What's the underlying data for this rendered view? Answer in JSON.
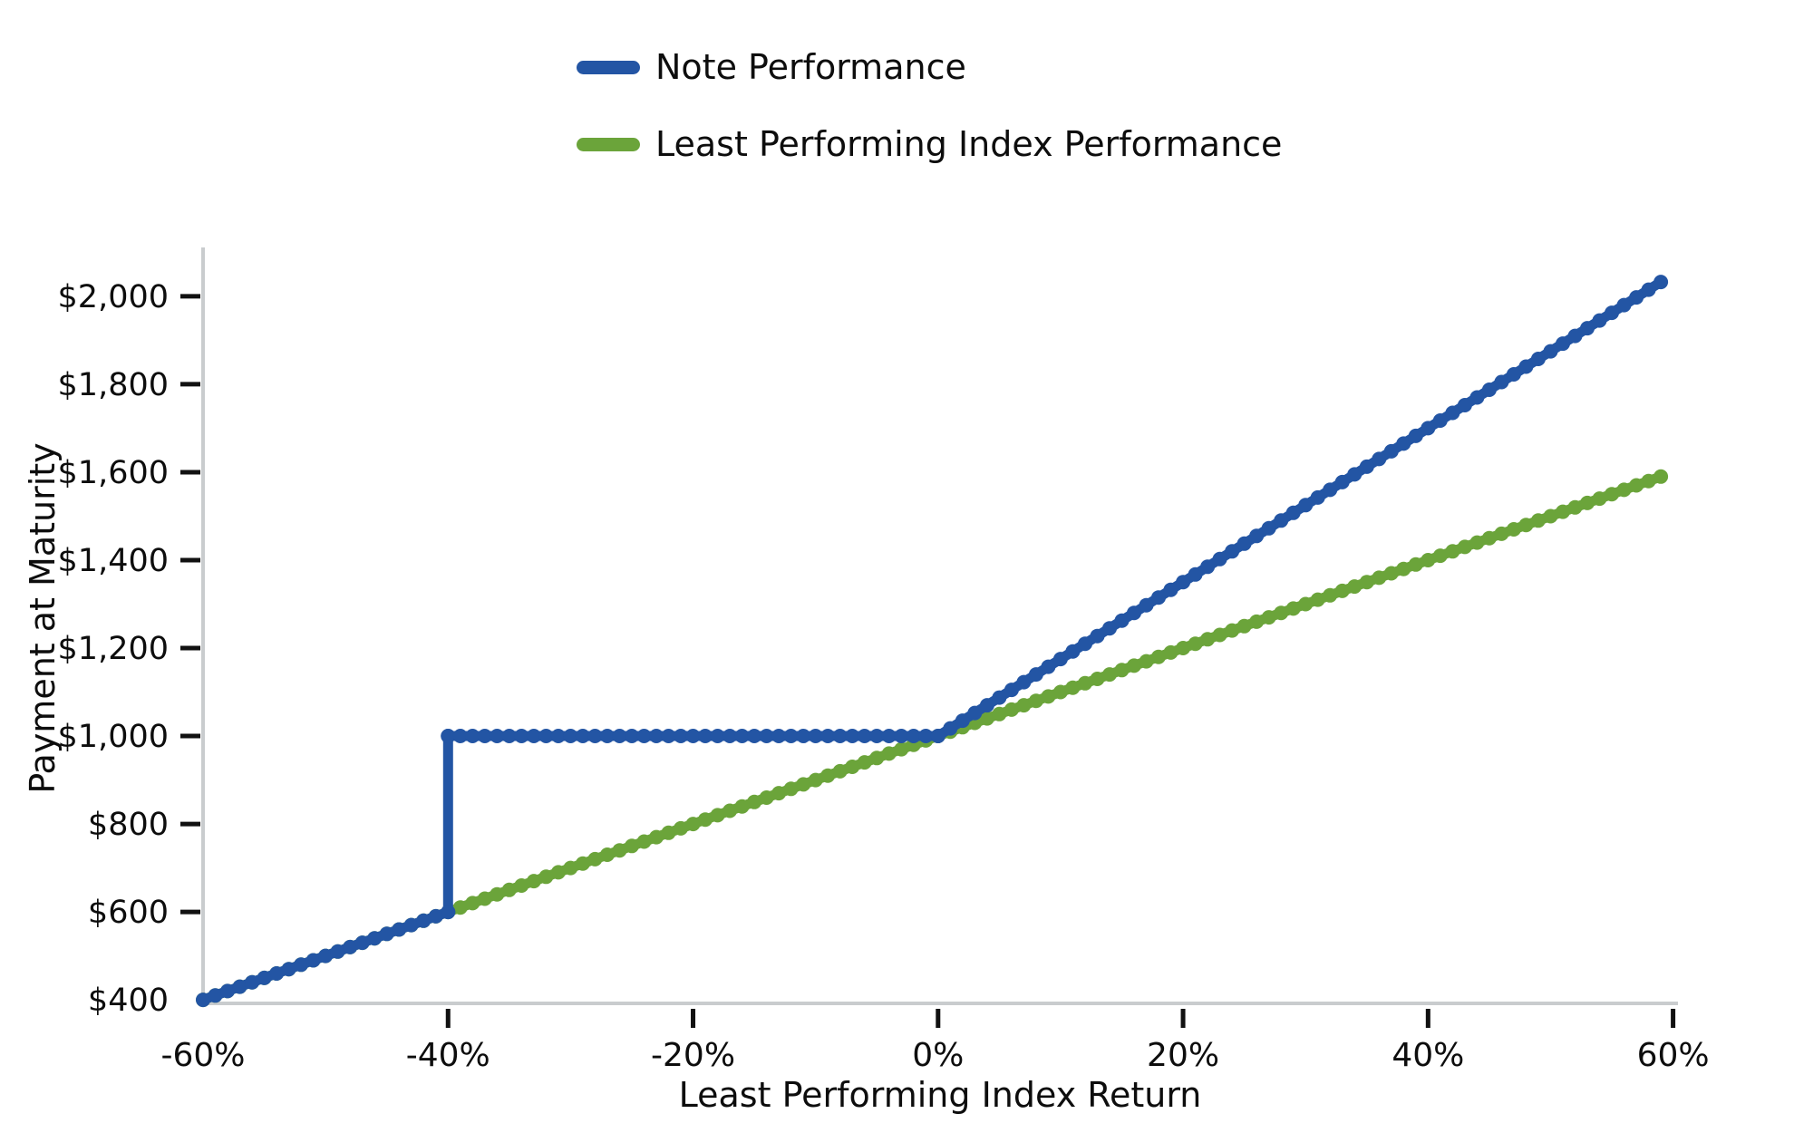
{
  "chart_data": {
    "type": "line",
    "title": "",
    "xlabel": "Least Performing Index Return",
    "ylabel": "Payment at Maturity",
    "xlim": [
      -60,
      60.4
    ],
    "ylim": [
      392,
      2107
    ],
    "grid": false,
    "legend_position": "top-center, outside plot, no frame",
    "marker_step_pct": 1,
    "x_unit": "percent",
    "y_unit": "USD",
    "series": [
      {
        "name": "Note Performance",
        "color": "#2355A4",
        "breakpoints": [
          [
            -60,
            400
          ],
          [
            -40,
            600
          ],
          [
            -40,
            1000
          ],
          [
            0,
            1000
          ],
          [
            59,
            2032.5
          ]
        ],
        "payoff_structure": {
          "barrier_pct": -40,
          "par_payment": 1000,
          "upside_leverage": 1.75
        }
      },
      {
        "name": "Least Performing Index Performance",
        "color": "#6BA43A",
        "breakpoints": [
          [
            -60,
            400
          ],
          [
            59,
            1590
          ]
        ],
        "payoff_structure": {
          "participation": 1.0
        }
      }
    ],
    "yticks": [
      {
        "value": 400,
        "label": "$400",
        "tick_mark": false
      },
      {
        "value": 600,
        "label": "$600",
        "tick_mark": true
      },
      {
        "value": 800,
        "label": "$800",
        "tick_mark": true
      },
      {
        "value": 1000,
        "label": "$1,000",
        "tick_mark": true
      },
      {
        "value": 1200,
        "label": "$1,200",
        "tick_mark": true
      },
      {
        "value": 1400,
        "label": "$1,400",
        "tick_mark": true
      },
      {
        "value": 1600,
        "label": "$1,600",
        "tick_mark": true
      },
      {
        "value": 1800,
        "label": "$1,800",
        "tick_mark": true
      },
      {
        "value": 2000,
        "label": "$2,000",
        "tick_mark": true
      }
    ],
    "xticks": [
      {
        "value": -60,
        "label": "-60%",
        "tick_mark": false
      },
      {
        "value": -40,
        "label": "-40%",
        "tick_mark": true
      },
      {
        "value": -20,
        "label": "-20%",
        "tick_mark": true
      },
      {
        "value": 0,
        "label": "0%",
        "tick_mark": true
      },
      {
        "value": 20,
        "label": "20%",
        "tick_mark": true
      },
      {
        "value": 40,
        "label": "40%",
        "tick_mark": true
      },
      {
        "value": 60,
        "label": "60%",
        "tick_mark": true
      }
    ]
  }
}
